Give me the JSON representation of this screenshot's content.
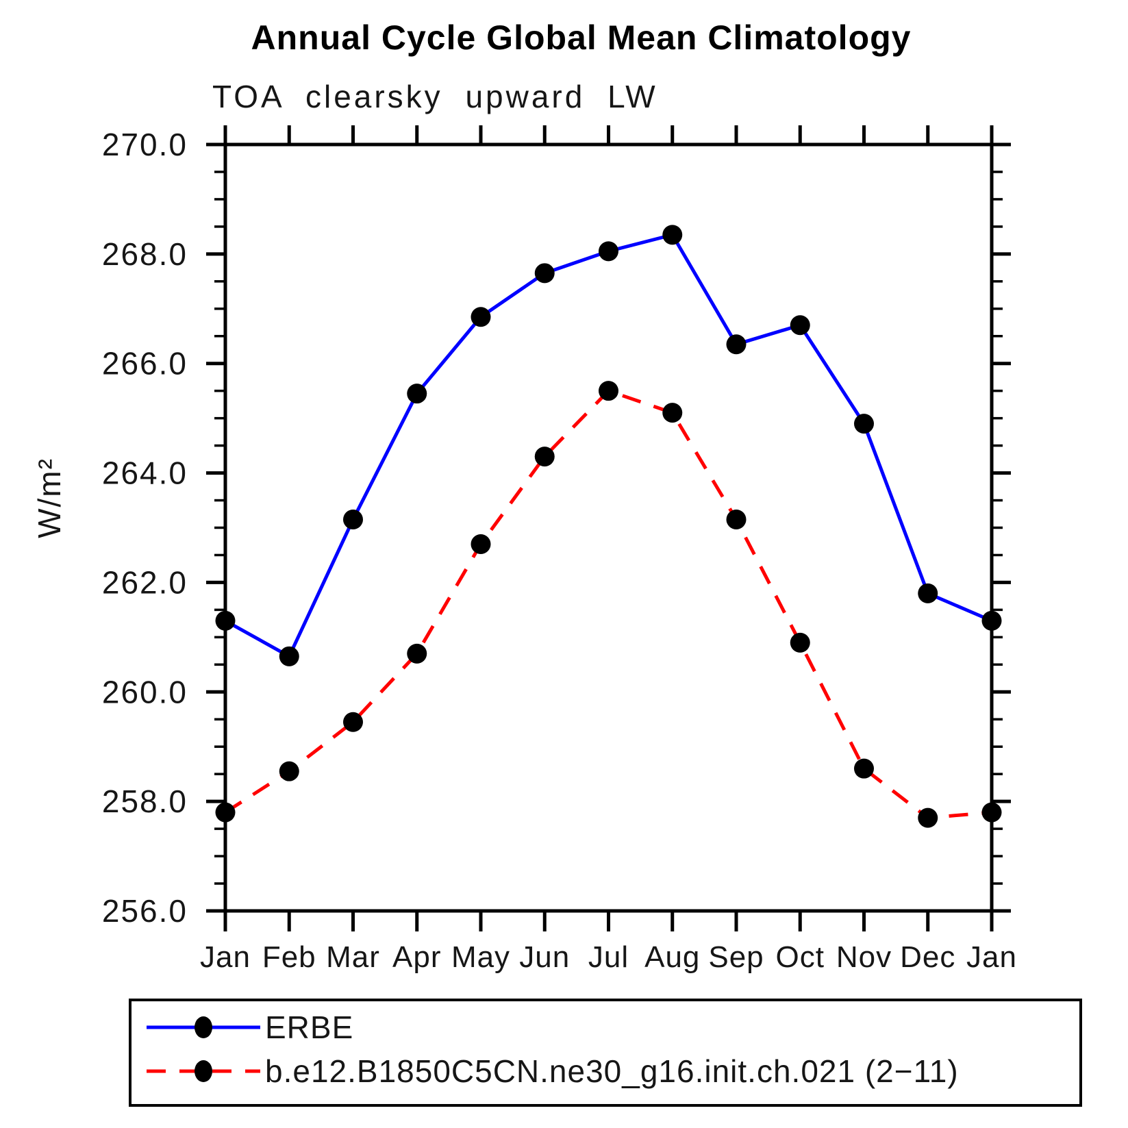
{
  "title": "Annual Cycle Global Mean Climatology",
  "subtitle": "TOA clearsky upward LW",
  "chart_data": {
    "type": "line",
    "title": "Annual Cycle Global Mean Climatology",
    "subtitle": "TOA clearsky upward LW",
    "xlabel": "",
    "ylabel": "W/m²",
    "categories": [
      "Jan",
      "Feb",
      "Mar",
      "Apr",
      "May",
      "Jun",
      "Jul",
      "Aug",
      "Sep",
      "Oct",
      "Nov",
      "Dec",
      "Jan"
    ],
    "series": [
      {
        "name": "ERBE",
        "color": "#0000ff",
        "line_style": "solid",
        "marker": "circle",
        "marker_color": "#000000",
        "values": [
          261.3,
          260.65,
          263.15,
          265.45,
          266.85,
          267.65,
          268.05,
          268.35,
          266.35,
          266.7,
          264.9,
          261.8,
          261.3
        ]
      },
      {
        "name": "b.e12.B1850C5CN.ne30_g16.init.ch.021 (2−11)",
        "color": "#ff0000",
        "line_style": "dashed",
        "marker": "circle",
        "marker_color": "#000000",
        "values": [
          257.8,
          258.55,
          259.45,
          260.7,
          262.7,
          264.3,
          265.5,
          265.1,
          263.15,
          260.9,
          258.6,
          257.7,
          257.8
        ]
      }
    ],
    "ylim": [
      256.0,
      270.0
    ],
    "ytick_interval": 2.0,
    "ytick_minor_interval": 0.5,
    "ytick_labels": [
      "256.0",
      "258.0",
      "260.0",
      "262.0",
      "264.0",
      "266.0",
      "268.0",
      "270.0"
    ],
    "grid": false,
    "axis_color": "#000000",
    "background": "#ffffff",
    "legend_position": "bottom"
  }
}
